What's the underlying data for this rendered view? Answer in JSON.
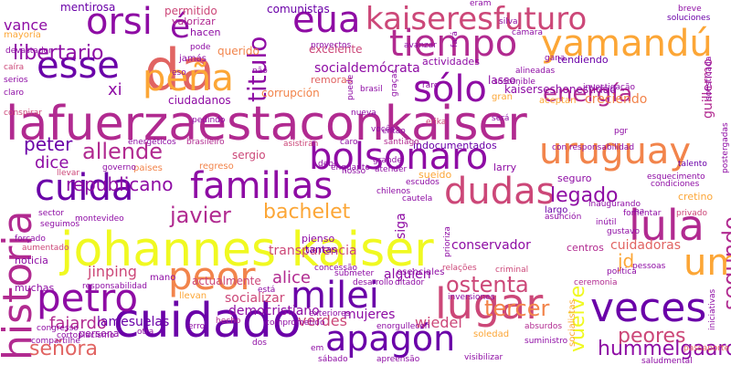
{
  "palette": [
    "#6a00a8",
    "#8e0ca4",
    "#b12a90",
    "#cc4778",
    "#e16462",
    "#f2844b",
    "#fca636",
    "#f0f921"
  ],
  "words": [
    {
      "text": "lafuerzaestaconkaiser",
      "color": "#b12a90"
    },
    {
      "text": "johannes kaiser",
      "color": "#f0f921"
    },
    {
      "text": "cuidado",
      "color": "#6a00a8"
    },
    {
      "text": "historia",
      "color": "#b12a90"
    },
    {
      "text": "da",
      "color": "#e16462"
    },
    {
      "text": "bolsonaro",
      "color": "#8e0ca4"
    },
    {
      "text": "familias",
      "color": "#8e0ca4"
    },
    {
      "text": "kaiseresfuturo",
      "color": "#cc4778"
    },
    {
      "text": "tiempo",
      "color": "#b12a90"
    },
    {
      "text": "uruguay",
      "color": "#f2844b"
    },
    {
      "text": "cuida",
      "color": "#6a00a8"
    },
    {
      "text": "dudas",
      "color": "#cc4778"
    },
    {
      "text": "lula",
      "color": "#b12a90"
    },
    {
      "text": "yamandú",
      "color": "#fca636"
    },
    {
      "text": "petro",
      "color": "#8e0ca4"
    },
    {
      "text": "lugar",
      "color": "#cc4778"
    },
    {
      "text": "veces",
      "color": "#6a00a8"
    },
    {
      "text": "eua",
      "color": "#8e0ca4"
    },
    {
      "text": "orsi",
      "color": "#8e0ca4"
    },
    {
      "text": "esse",
      "color": "#6a00a8"
    },
    {
      "text": "peña",
      "color": "#fca636"
    },
    {
      "text": "milei",
      "color": "#6a00a8"
    },
    {
      "text": "apagón",
      "color": "#6a00a8"
    },
    {
      "text": "peor",
      "color": "#f2844b"
    },
    {
      "text": "um",
      "color": "#fca636"
    },
    {
      "text": "sólo",
      "color": "#8e0ca4"
    },
    {
      "text": "energía",
      "color": "#b12a90"
    },
    {
      "text": "titulo",
      "color": "#8e0ca4"
    },
    {
      "text": "é",
      "color": "#8e0ca4"
    },
    {
      "text": "allende",
      "color": "#b12a90"
    },
    {
      "text": "javier",
      "color": "#b12a90"
    },
    {
      "text": "bachelet",
      "color": "#fca636"
    },
    {
      "text": "legado",
      "color": "#8e0ca4"
    },
    {
      "text": "segundo",
      "color": "#b12a90"
    },
    {
      "text": "ostenta",
      "color": "#cc4778"
    },
    {
      "text": "tercer",
      "color": "#f2844b"
    },
    {
      "text": "peores",
      "color": "#cc4778"
    },
    {
      "text": "hummelgaard",
      "color": "#8e0ca4"
    },
    {
      "text": "vuelve",
      "color": "#f0f921"
    },
    {
      "text": "libertario",
      "color": "#8e0ca4"
    },
    {
      "text": "republicano",
      "color": "#8e0ca4"
    },
    {
      "text": "peter",
      "color": "#6a00a8"
    },
    {
      "text": "dice",
      "color": "#8e0ca4"
    },
    {
      "text": "vance",
      "color": "#8e0ca4"
    },
    {
      "text": "xi",
      "color": "#8e0ca4"
    },
    {
      "text": "jinping",
      "color": "#cc4778"
    },
    {
      "text": "alice",
      "color": "#b12a90"
    },
    {
      "text": "socializar",
      "color": "#cc4778"
    },
    {
      "text": "fajardo",
      "color": "#b12a90"
    },
    {
      "text": "señora",
      "color": "#e16462"
    },
    {
      "text": "lamesuelas",
      "color": "#6a00a8"
    },
    {
      "text": "democristiano",
      "color": "#8e0ca4"
    },
    {
      "text": "verdes",
      "color": "#cc4778"
    },
    {
      "text": "mujeres",
      "color": "#8e0ca4"
    },
    {
      "text": "wiedel",
      "color": "#cc4778"
    },
    {
      "text": "jd",
      "color": "#fca636"
    },
    {
      "text": "cuidadoras",
      "color": "#e16462"
    },
    {
      "text": "conservador",
      "color": "#8e0ca4"
    },
    {
      "text": "alguien",
      "color": "#8e0ca4"
    },
    {
      "text": "transparencia",
      "color": "#cc4778"
    },
    {
      "text": "actualmente",
      "color": "#cc4778"
    },
    {
      "text": "socialdemócrata",
      "color": "#8e0ca4"
    },
    {
      "text": "kaiserseshonestidad",
      "color": "#8e0ca4"
    },
    {
      "text": "lasso",
      "color": "#8e0ca4"
    },
    {
      "text": "corrupción",
      "color": "#f2844b"
    },
    {
      "text": "ciudadanos",
      "color": "#8e0ca4"
    },
    {
      "text": "comunistas",
      "color": "#6a00a8"
    },
    {
      "text": "mentirosa",
      "color": "#6a00a8"
    },
    {
      "text": "permitido",
      "color": "#cc4778"
    },
    {
      "text": "valorizar",
      "color": "#b12a90"
    },
    {
      "text": "hacen",
      "color": "#8e0ca4"
    },
    {
      "text": "jamás",
      "color": "#8e0ca4"
    },
    {
      "text": "querido",
      "color": "#f2844b"
    },
    {
      "text": "excelente",
      "color": "#cc4778"
    },
    {
      "text": "remoras",
      "color": "#e16462"
    },
    {
      "text": "creciendo",
      "color": "#f2844b"
    },
    {
      "text": "guillermo",
      "color": "#b12a90"
    },
    {
      "text": "larry",
      "color": "#8e0ca4"
    },
    {
      "text": "indocumentados",
      "color": "#6a00a8"
    },
    {
      "text": "sergio",
      "color": "#cc4778"
    },
    {
      "text": "sueido",
      "color": "#fca636"
    },
    {
      "text": "regreso",
      "color": "#f2844b"
    },
    {
      "text": "paises",
      "color": "#f2844b"
    },
    {
      "text": "seguro",
      "color": "#8e0ca4"
    },
    {
      "text": "cretino",
      "color": "#fca636"
    },
    {
      "text": "centros",
      "color": "#b12a90"
    },
    {
      "text": "esenciales",
      "color": "#8e0ca4"
    },
    {
      "text": "pienso",
      "color": "#8e0ca4"
    },
    {
      "text": "tantas",
      "color": "#6a00a8"
    },
    {
      "text": "muchas",
      "color": "#8e0ca4"
    },
    {
      "text": "noticia",
      "color": "#8e0ca4"
    },
    {
      "text": "persona",
      "color": "#8e0ca4"
    },
    {
      "text": "llevan",
      "color": "#fca636"
    },
    {
      "text": "mano",
      "color": "#8e0ca4"
    },
    {
      "text": "largo",
      "color": "#6a00a8"
    },
    {
      "text": "siga",
      "color": "#8e0ca4"
    },
    {
      "text": "mayoría",
      "color": "#fca636"
    },
    {
      "text": "actividades",
      "color": "#8e0ca4"
    },
    {
      "text": "tendiendo",
      "color": "#6a00a8"
    },
    {
      "text": "breve",
      "color": "#8e0ca4"
    },
    {
      "text": "soluciones",
      "color": "#6a00a8"
    },
    {
      "text": "alineadas",
      "color": "#8e0ca4"
    },
    {
      "text": "socialistas",
      "color": "#fca636"
    },
    {
      "text": "soledad",
      "color": "#fca636"
    },
    {
      "text": "aceptan",
      "color": "#fca636"
    },
    {
      "text": "gran",
      "color": "#fca636"
    },
    {
      "text": "devastador",
      "color": "#8e0ca4"
    },
    {
      "text": "caíra",
      "color": "#cc4778"
    },
    {
      "text": "serios",
      "color": "#8e0ca4"
    },
    {
      "text": "claro",
      "color": "#8e0ca4"
    },
    {
      "text": "conspirar",
      "color": "#cc4778"
    },
    {
      "text": "energéticos",
      "color": "#8e0ca4"
    },
    {
      "text": "brasileiro",
      "color": "#b12a90"
    },
    {
      "text": "asistirán",
      "color": "#cc4778"
    },
    {
      "text": "santiago",
      "color": "#b12a90"
    },
    {
      "text": "caro",
      "color": "#8e0ca4"
    },
    {
      "text": "pedindo",
      "color": "#8e0ca4"
    },
    {
      "text": "erika",
      "color": "#cc4778"
    },
    {
      "text": "brasil",
      "color": "#8e0ca4"
    },
    {
      "text": "pgr",
      "color": "#8e0ca4"
    },
    {
      "text": "postergadas",
      "color": "#8e0ca4"
    },
    {
      "text": "talento",
      "color": "#6a00a8"
    },
    {
      "text": "privado",
      "color": "#cc4778"
    },
    {
      "text": "fomentar",
      "color": "#8e0ca4"
    },
    {
      "text": "gustavo",
      "color": "#8e0ca4"
    },
    {
      "text": "inútil",
      "color": "#8e0ca4"
    },
    {
      "text": "política",
      "color": "#8e0ca4"
    },
    {
      "text": "iniciativas",
      "color": "#8e0ca4"
    },
    {
      "text": "passaporte",
      "color": "#e16462"
    },
    {
      "text": "saludmental",
      "color": "#8e0ca4"
    },
    {
      "text": "ceremonia",
      "color": "#b12a90"
    },
    {
      "text": "inversiones",
      "color": "#8e0ca4"
    },
    {
      "text": "criminal",
      "color": "#cc4778"
    },
    {
      "text": "relações",
      "color": "#cc4778"
    },
    {
      "text": "absurdos",
      "color": "#b12a90"
    },
    {
      "text": "suministro",
      "color": "#8e0ca4"
    },
    {
      "text": "visibilizar",
      "color": "#8e0ca4"
    },
    {
      "text": "apreensão",
      "color": "#8e0ca4"
    },
    {
      "text": "enorgullecen",
      "color": "#8e0ca4"
    },
    {
      "text": "sábado",
      "color": "#8e0ca4"
    },
    {
      "text": "congresso",
      "color": "#8e0ca4"
    },
    {
      "text": "compartilhe",
      "color": "#8e0ca4"
    },
    {
      "text": "cortoplacismo",
      "color": "#8e0ca4"
    },
    {
      "text": "forçado",
      "color": "#8e0ca4"
    },
    {
      "text": "aumentado",
      "color": "#cc4778"
    },
    {
      "text": "seguimos",
      "color": "#8e0ca4"
    },
    {
      "text": "sector",
      "color": "#8e0ca4"
    },
    {
      "text": "montevideo",
      "color": "#8e0ca4"
    },
    {
      "text": "llevar",
      "color": "#cc4778"
    },
    {
      "text": "governo",
      "color": "#8e0ca4"
    },
    {
      "text": "desarrollo",
      "color": "#8e0ca4"
    },
    {
      "text": "ditador",
      "color": "#8e0ca4"
    },
    {
      "text": "responsabilidad",
      "color": "#8e0ca4"
    },
    {
      "text": "exteriores",
      "color": "#8e0ca4"
    },
    {
      "text": "comprometido",
      "color": "#8e0ca4"
    },
    {
      "text": "sostenible",
      "color": "#8e0ca4"
    },
    {
      "text": "concessão",
      "color": "#8e0ca4"
    },
    {
      "text": "submeter",
      "color": "#8e0ca4"
    },
    {
      "text": "prioriza",
      "color": "#8e0ca4"
    },
    {
      "text": "asunción",
      "color": "#8e0ca4"
    },
    {
      "text": "esquecimento",
      "color": "#8e0ca4"
    },
    {
      "text": "condiciones",
      "color": "#8e0ca4"
    },
    {
      "text": "cautela",
      "color": "#8e0ca4"
    },
    {
      "text": "chilenos",
      "color": "#8e0ca4"
    },
    {
      "text": "escudos",
      "color": "#8e0ca4"
    },
    {
      "text": "atender",
      "color": "#8e0ca4"
    },
    {
      "text": "inaugurando",
      "color": "#8e0ca4"
    },
    {
      "text": "sofisticada",
      "color": "#8e0ca4"
    },
    {
      "text": "gana",
      "color": "#8e0ca4"
    },
    {
      "text": "investigação",
      "color": "#8e0ca4"
    },
    {
      "text": "cámara",
      "color": "#8e0ca4"
    },
    {
      "text": "debe",
      "color": "#8e0ca4"
    },
    {
      "text": "hecho",
      "color": "#b12a90"
    },
    {
      "text": "será",
      "color": "#8e0ca4"
    },
    {
      "text": "está",
      "color": "#8e0ca4"
    },
    {
      "text": "eso",
      "color": "#8e0ca4"
    },
    {
      "text": "puede",
      "color": "#8e0ca4"
    },
    {
      "text": "então",
      "color": "#8e0ca4"
    },
    {
      "text": "eram",
      "color": "#8e0ca4"
    },
    {
      "text": "raro",
      "color": "#8e0ca4"
    },
    {
      "text": "avanzar",
      "color": "#8e0ca4"
    },
    {
      "text": "silva",
      "color": "#8e0ca4"
    },
    {
      "text": "grande",
      "color": "#8e0ca4"
    },
    {
      "text": "nosso",
      "color": "#8e0ca4"
    },
    {
      "text": "nueva",
      "color": "#8e0ca4"
    },
    {
      "text": "pode",
      "color": "#8e0ca4"
    },
    {
      "text": "proyectos",
      "color": "#8e0ca4"
    },
    {
      "text": "graças",
      "color": "#8e0ca4"
    },
    {
      "text": "vocês",
      "color": "#8e0ca4"
    },
    {
      "text": "não",
      "color": "#8e0ca4"
    },
    {
      "text": "otra",
      "color": "#8e0ca4"
    },
    {
      "text": "erro",
      "color": "#8e0ca4"
    },
    {
      "text": "em",
      "color": "#8e0ca4"
    },
    {
      "text": "na",
      "color": "#8e0ca4"
    },
    {
      "text": "con responsabilidad",
      "color": "#8e0ca4"
    },
    {
      "text": "fará",
      "color": "#8e0ca4"
    },
    {
      "text": "enquanto",
      "color": "#8e0ca4"
    },
    {
      "text": "dos",
      "color": "#8e0ca4"
    },
    {
      "text": "pessoas",
      "color": "#8e0ca4"
    },
    {
      "text": "mental",
      "color": "#8e0ca4"
    }
  ]
}
